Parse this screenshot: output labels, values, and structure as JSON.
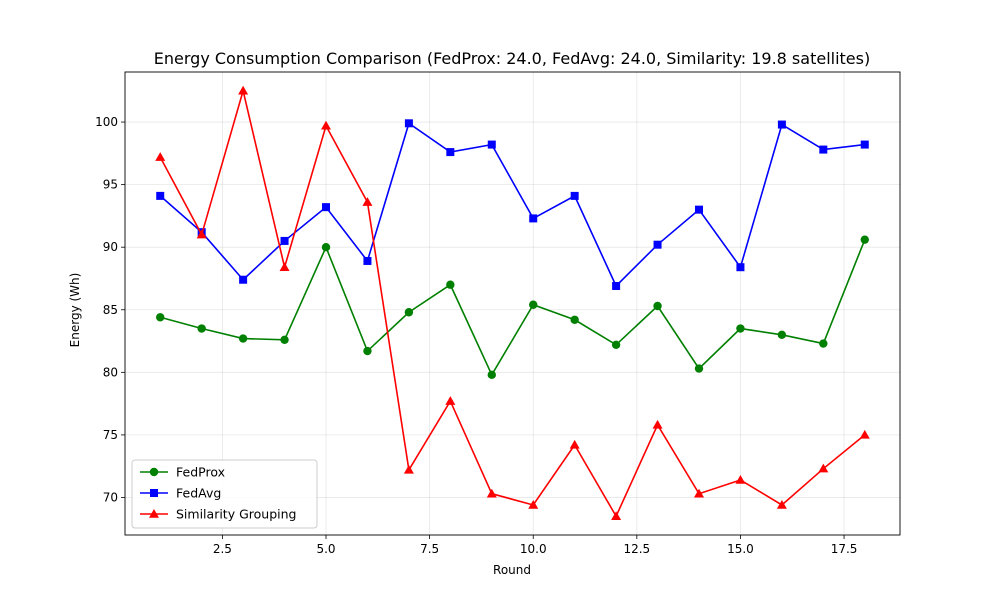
{
  "chart_data": {
    "type": "line",
    "title": "Energy Consumption Comparison (FedProx: 24.0, FedAvg: 24.0, Similarity: 19.8 satellites)",
    "xlabel": "Round",
    "ylabel": "Energy (Wh)",
    "xlim": [
      0.15,
      18.85
    ],
    "ylim": [
      67.0,
      104.0
    ],
    "xticks": [
      2.5,
      5.0,
      7.5,
      10.0,
      12.5,
      15.0,
      17.5
    ],
    "xtick_labels": [
      "2.5",
      "5.0",
      "7.5",
      "10.0",
      "12.5",
      "15.0",
      "17.5"
    ],
    "yticks": [
      70,
      75,
      80,
      85,
      90,
      95,
      100
    ],
    "ytick_labels": [
      "70",
      "75",
      "80",
      "85",
      "90",
      "95",
      "100"
    ],
    "grid": true,
    "legend_position": "lower-left",
    "x": [
      1,
      2,
      3,
      4,
      5,
      6,
      7,
      8,
      9,
      10,
      11,
      12,
      13,
      14,
      15,
      16,
      17,
      18
    ],
    "series": [
      {
        "name": "FedProx",
        "color": "#008000",
        "marker": "circle",
        "values": [
          84.4,
          83.5,
          82.7,
          82.6,
          90.0,
          81.7,
          84.8,
          87.0,
          79.8,
          85.4,
          84.2,
          82.2,
          85.3,
          80.3,
          83.5,
          83.0,
          82.3,
          90.6
        ]
      },
      {
        "name": "FedAvg",
        "color": "#0000ff",
        "marker": "square",
        "values": [
          94.1,
          91.2,
          87.4,
          90.5,
          93.2,
          88.9,
          99.9,
          97.6,
          98.2,
          92.3,
          94.1,
          86.9,
          90.2,
          93.0,
          88.4,
          99.8,
          97.8,
          98.2
        ]
      },
      {
        "name": "Similarity Grouping",
        "color": "#ff0000",
        "marker": "triangle",
        "values": [
          97.2,
          91.0,
          102.5,
          88.4,
          99.7,
          93.6,
          72.2,
          77.7,
          70.3,
          69.4,
          74.2,
          68.5,
          75.8,
          70.3,
          71.4,
          69.4,
          72.3,
          75.0
        ]
      }
    ]
  }
}
